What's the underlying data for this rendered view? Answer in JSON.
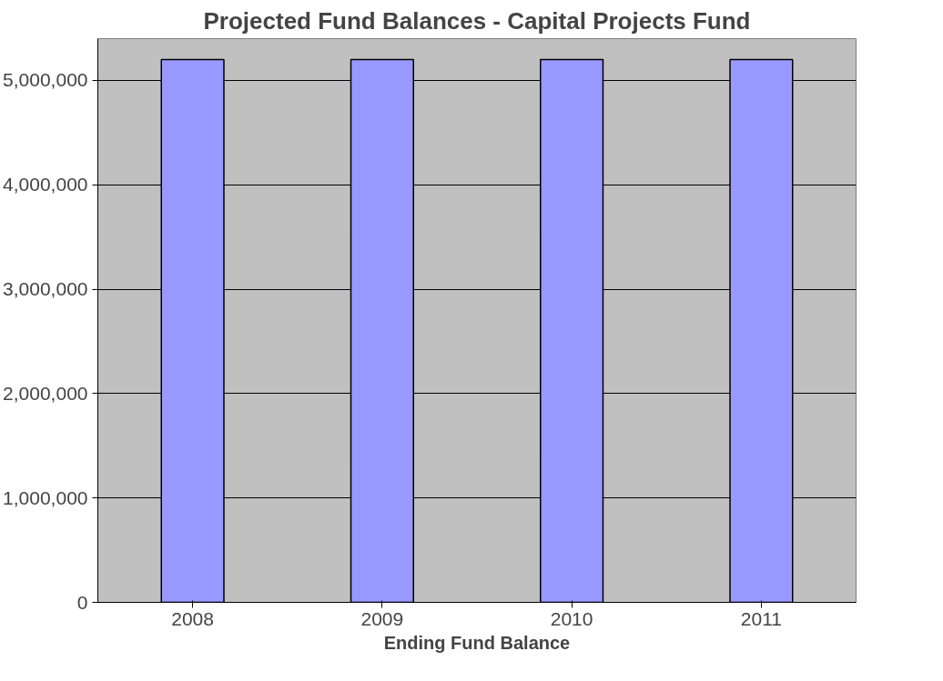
{
  "chart_data": {
    "type": "bar",
    "title": "Projected Fund Balances - Capital Projects Fund",
    "xlabel": "Ending Fund Balance",
    "categories": [
      "2008",
      "2009",
      "2010",
      "2011"
    ],
    "values": [
      5200000,
      5200000,
      5200000,
      5200000
    ],
    "color": "#9999ff",
    "ylim": [
      0,
      5400000
    ],
    "yticks": [
      {
        "value": 0,
        "label": "0"
      },
      {
        "value": 1000000,
        "label": "1,000,000"
      },
      {
        "value": 2000000,
        "label": "2,000,000"
      },
      {
        "value": 3000000,
        "label": "3,000,000"
      },
      {
        "value": 4000000,
        "label": "4,000,000"
      },
      {
        "value": 5000000,
        "label": "5,000,000"
      }
    ],
    "grid": "y"
  }
}
